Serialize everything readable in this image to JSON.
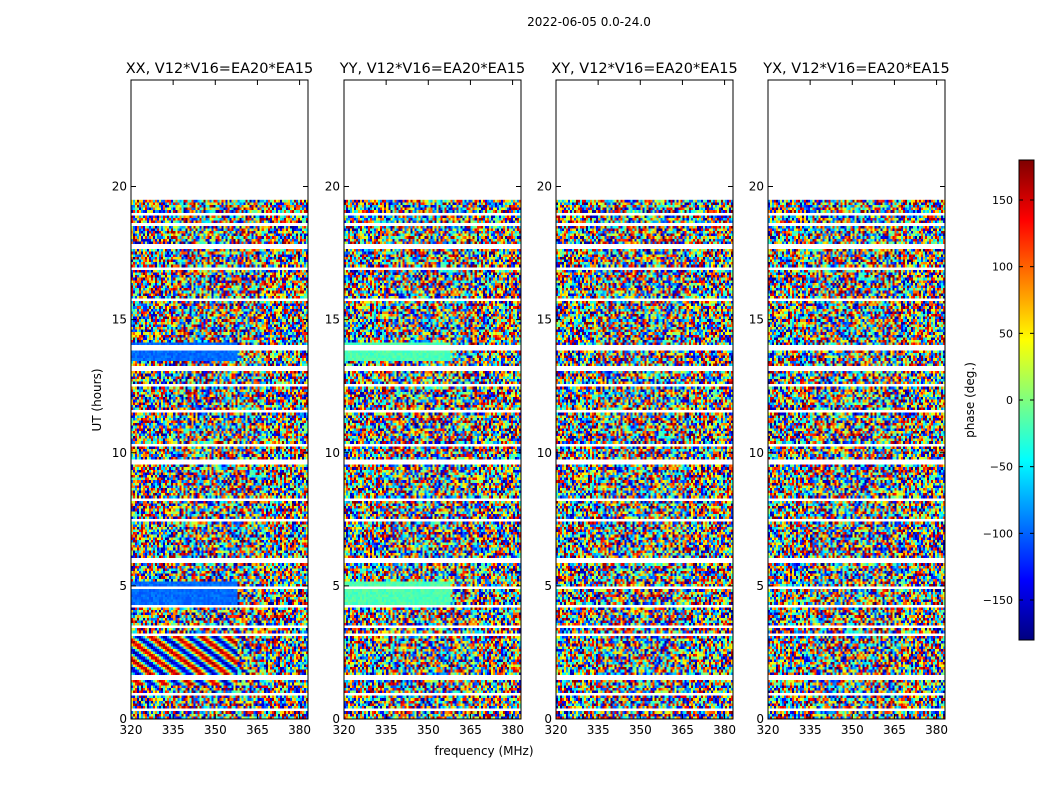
{
  "chart_data": {
    "type": "heatmap",
    "title": "2022-06-05 0.0-24.0",
    "xlabel": "frequency (MHz)",
    "ylabel": "UT (hours)",
    "xlim": [
      320,
      383
    ],
    "ylim": [
      0,
      24
    ],
    "x_ticks": [
      320,
      335,
      350,
      365,
      380
    ],
    "y_ticks": [
      0,
      5,
      10,
      15,
      20
    ],
    "data_extent_hours": [
      0,
      19.5
    ],
    "panels": [
      {
        "title": "XX, V12*V16=EA20*EA15"
      },
      {
        "title": "YY, V12*V16=EA20*EA15"
      },
      {
        "title": "XY, V12*V16=EA20*EA15"
      },
      {
        "title": "YX, V12*V16=EA20*EA15"
      }
    ],
    "colorbar": {
      "label": "phase (deg.)",
      "range": [
        -180,
        180
      ],
      "ticks": [
        -150,
        -100,
        -50,
        0,
        50,
        100,
        150
      ],
      "tick_labels": [
        "−150",
        "−100",
        "−50",
        "0",
        "50",
        "100",
        "150"
      ],
      "colormap": [
        "#00007f",
        "#0000ff",
        "#007fff",
        "#00ffff",
        "#7fff7f",
        "#ffff00",
        "#ff7f00",
        "#ff0000",
        "#7f0000"
      ]
    },
    "flagged_gaps_hours": [
      19.0,
      18.6,
      17.8,
      17.0,
      15.8,
      14.0,
      13.2,
      12.6,
      11.6,
      10.3,
      9.7,
      8.3,
      7.5,
      6.0,
      5.0,
      4.3,
      3.5,
      3.2,
      1.6,
      1.0,
      0.4
    ]
  }
}
